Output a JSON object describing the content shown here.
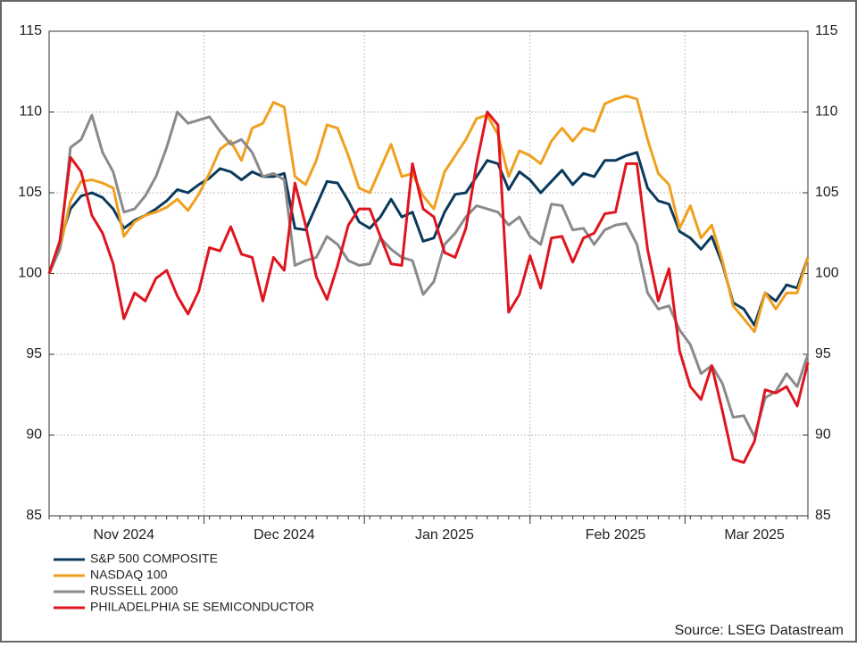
{
  "chart_data": {
    "type": "line",
    "categories": [
      null,
      null,
      null,
      null,
      null,
      null,
      null,
      "Nov 2024",
      null,
      null,
      null,
      null,
      null,
      null,
      null,
      null,
      null,
      null,
      null,
      null,
      null,
      null,
      "Dec 2024",
      null,
      null,
      null,
      null,
      null,
      null,
      null,
      null,
      null,
      null,
      null,
      null,
      null,
      null,
      "Jan 2025",
      null,
      null,
      null,
      null,
      null,
      null,
      null,
      null,
      null,
      null,
      null,
      null,
      null,
      null,
      null,
      "Feb 2025",
      null,
      null,
      null,
      null,
      null,
      null,
      null,
      null,
      null,
      null,
      null,
      null,
      "Mar 2025",
      null,
      null,
      null,
      null,
      null
    ],
    "series": [
      {
        "name": "S&P 500 COMPOSITE",
        "color": "#0b3a5c",
        "values": [
          100,
          102,
          104,
          104.8,
          105,
          104.7,
          104,
          102.8,
          103.3,
          103.6,
          104,
          104.5,
          105.2,
          105,
          105.5,
          105.9,
          106.5,
          106.3,
          105.8,
          106.3,
          106,
          106,
          106.2,
          102.8,
          102.7,
          104.2,
          105.7,
          105.6,
          104.5,
          103.2,
          102.8,
          103.5,
          104.6,
          103.5,
          103.8,
          102,
          102.2,
          103.8,
          104.9,
          105,
          106,
          107,
          106.8,
          105.2,
          106.3,
          105.8,
          105,
          105.7,
          106.4,
          105.5,
          106.2,
          106,
          107,
          107,
          107.3,
          107.5,
          105.3,
          104.5,
          104.3,
          102.6,
          102.2,
          101.5,
          102.3,
          100.6,
          98.2,
          97.8,
          96.8,
          98.8,
          98.3,
          99.3,
          99.1,
          101
        ]
      },
      {
        "name": "NASDAQ 100",
        "color": "#f0a01e",
        "values": [
          100,
          101.5,
          104.5,
          105.7,
          105.8,
          105.6,
          105.3,
          102.3,
          103.2,
          103.6,
          103.8,
          104.1,
          104.6,
          103.9,
          104.9,
          106.2,
          107.7,
          108.2,
          107,
          109,
          109.3,
          110.6,
          110.3,
          106,
          105.5,
          107,
          109.2,
          109,
          107.3,
          105.3,
          105,
          106.5,
          108,
          106,
          106.2,
          104.8,
          104,
          106.3,
          107.3,
          108.3,
          109.6,
          109.8,
          108.6,
          106,
          107.6,
          107.3,
          106.8,
          108.2,
          109,
          108.2,
          109,
          108.8,
          110.5,
          110.8,
          111,
          110.8,
          108.3,
          106.2,
          105.5,
          102.8,
          104.2,
          102.2,
          103,
          100.8,
          98,
          97.2,
          96.4,
          98.8,
          97.8,
          98.8,
          98.8,
          101
        ]
      },
      {
        "name": "RUSSELL 2000",
        "color": "#8a8a8a",
        "values": [
          100,
          101.5,
          107.8,
          108.3,
          109.8,
          107.5,
          106.3,
          103.8,
          104,
          104.8,
          106,
          107.8,
          110,
          109.3,
          109.5,
          109.7,
          108.8,
          108,
          108.3,
          107.5,
          106,
          106.2,
          105.8,
          100.5,
          100.8,
          101,
          102.3,
          101.8,
          100.8,
          100.5,
          100.6,
          102.2,
          101.5,
          101,
          100.8,
          98.7,
          99.5,
          101.8,
          102.5,
          103.5,
          104.2,
          104,
          103.8,
          103,
          103.5,
          102.3,
          101.8,
          104.3,
          104.2,
          102.7,
          102.8,
          101.8,
          102.7,
          103,
          103.1,
          101.8,
          98.8,
          97.8,
          98,
          96.5,
          95.6,
          93.8,
          94.3,
          93.2,
          91.1,
          91.2,
          89.9,
          92.3,
          92.7,
          93.8,
          93,
          95
        ]
      },
      {
        "name": "PHILADELPHIA SE SEMICONDUCTOR",
        "color": "#e0141e",
        "values": [
          100,
          102,
          107.2,
          106.3,
          103.6,
          102.5,
          100.6,
          97.2,
          98.8,
          98.3,
          99.7,
          100.2,
          98.6,
          97.5,
          98.9,
          101.6,
          101.4,
          102.9,
          101.2,
          101,
          98.3,
          101,
          100.2,
          105.6,
          103,
          99.8,
          98.4,
          100.5,
          103,
          104,
          104,
          102.3,
          100.6,
          100.5,
          106.8,
          104,
          103.5,
          101.3,
          101,
          102.8,
          106.8,
          110,
          109.2,
          97.6,
          98.7,
          101.1,
          99.1,
          102.2,
          102.3,
          100.7,
          102.2,
          102.5,
          103.7,
          103.8,
          106.8,
          106.8,
          101.5,
          98.3,
          100.3,
          95.2,
          93,
          92.2,
          94.3,
          91.5,
          88.5,
          88.3,
          89.6,
          92.8,
          92.6,
          93,
          91.8,
          94.5
        ]
      }
    ],
    "ylim": [
      85,
      115
    ],
    "yticks": [
      85,
      90,
      95,
      100,
      105,
      110,
      115
    ],
    "grid": true,
    "source": "Source: LSEG Datastream"
  }
}
